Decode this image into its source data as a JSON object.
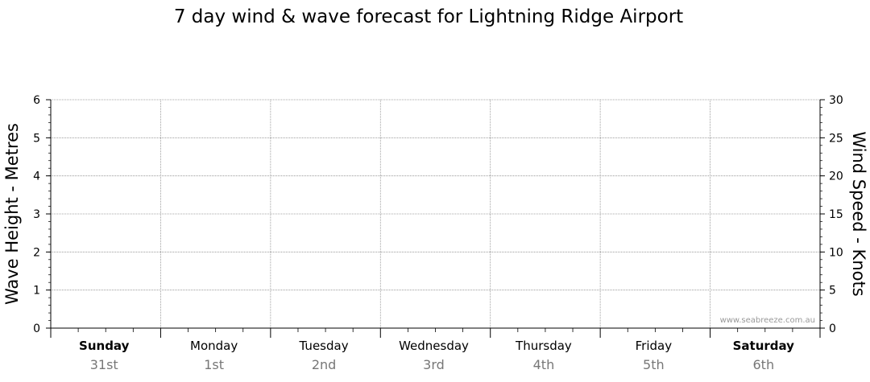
{
  "chart_data": {
    "type": "line",
    "title": "7 day wind & wave forecast for Lightning Ridge Airport",
    "y_left": {
      "label": "Wave Height - Metres",
      "range": [
        0,
        6
      ],
      "ticks": [
        0,
        1,
        2,
        3,
        4,
        5,
        6
      ]
    },
    "y_right": {
      "label": "Wind Speed - Knots",
      "range": [
        0,
        30
      ],
      "ticks": [
        0,
        5,
        10,
        15,
        20,
        25,
        30
      ]
    },
    "days": [
      {
        "name": "Sunday",
        "date": "31st",
        "bold": true
      },
      {
        "name": "Monday",
        "date": "1st",
        "bold": false
      },
      {
        "name": "Tuesday",
        "date": "2nd",
        "bold": false
      },
      {
        "name": "Wednesday",
        "date": "3rd",
        "bold": false
      },
      {
        "name": "Thursday",
        "date": "4th",
        "bold": false
      },
      {
        "name": "Friday",
        "date": "5th",
        "bold": false
      },
      {
        "name": "Saturday",
        "date": "6th",
        "bold": true
      }
    ],
    "series": [],
    "grid": true,
    "watermark": "www.seabreeze.com.au"
  }
}
